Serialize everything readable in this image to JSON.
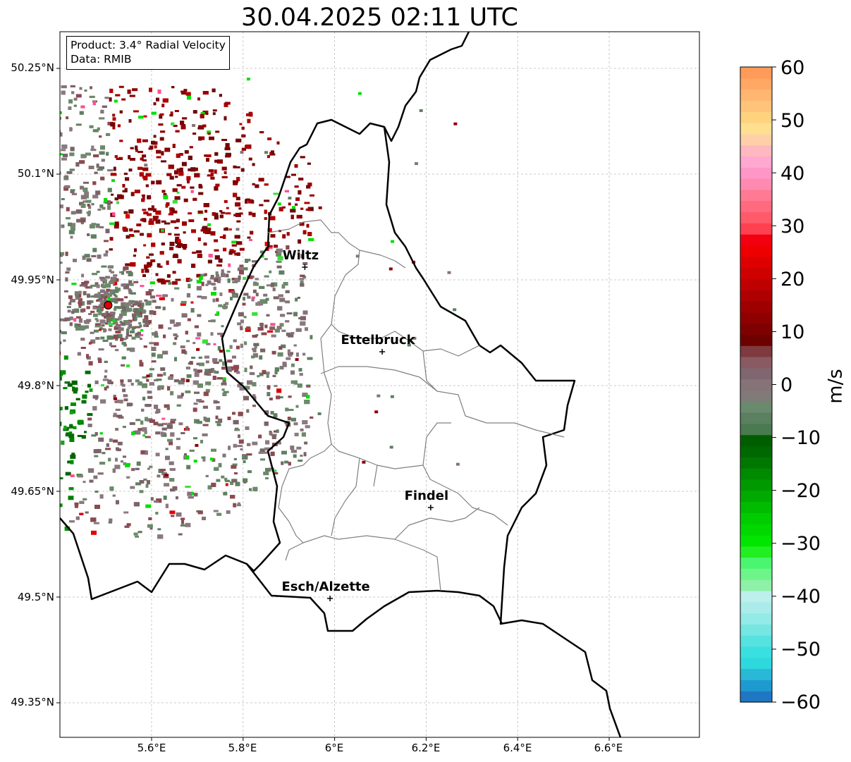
{
  "title": "30.04.2025 02:11 UTC",
  "info": {
    "product": "Product: 3.4° Radial Velocity",
    "source": "Data: RMIB"
  },
  "axes": {
    "y_ticks": [
      "50.25°N",
      "50.1°N",
      "49.95°N",
      "49.8°N",
      "49.65°N",
      "49.5°N",
      "49.35°N"
    ],
    "x_ticks": [
      "5.6°E",
      "5.8°E",
      "6°E",
      "6.2°E",
      "6.4°E",
      "6.6°E"
    ],
    "grid": true
  },
  "colorbar": {
    "unit": "m/s",
    "ticks": [
      "60",
      "50",
      "40",
      "30",
      "20",
      "10",
      "0",
      "−10",
      "−20",
      "−30",
      "−40",
      "−50",
      "−60"
    ],
    "range": [
      -60,
      60
    ]
  },
  "cities": [
    {
      "name": "Wiltz",
      "lon": 5.935,
      "lat": 49.968
    },
    {
      "name": "Ettelbruck",
      "lon": 6.104,
      "lat": 49.848
    },
    {
      "name": "Findel",
      "lon": 6.21,
      "lat": 49.627
    },
    {
      "name": "Esch/Alzette",
      "lon": 5.99,
      "lat": 49.498
    }
  ],
  "radar_site": {
    "lon": 5.505,
    "lat": 49.914
  },
  "colors": {
    "inbound_strong": "#008000",
    "inbound_weak": "#5e8060",
    "neutral": "#857378",
    "outbound": "#8b0000",
    "site_marker": "#e00000"
  }
}
